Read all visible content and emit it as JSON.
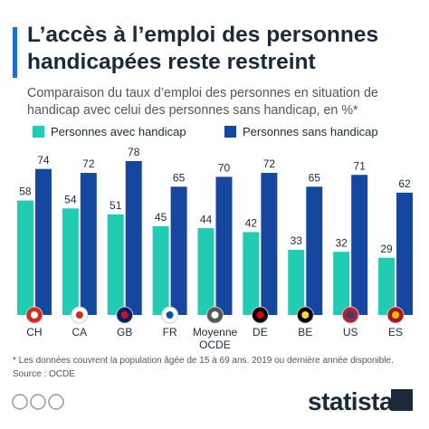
{
  "chart_data": {
    "type": "bar",
    "title": "L’accès à l’emploi des personnes handicapées reste restreint",
    "subtitle": "Comparaison du taux d’emploi des personnes en situation de handicap avec celui des personnes sans handicap, en %*",
    "categories": [
      "CH",
      "CA",
      "GB",
      "FR",
      "Moyenne OCDE",
      "DE",
      "BE",
      "US",
      "ES"
    ],
    "series": [
      {
        "name": "Personnes avec handicap",
        "color": "#22ccb2",
        "values": [
          58,
          54,
          51,
          45,
          44,
          42,
          33,
          32,
          29
        ]
      },
      {
        "name": "Personnes sans handicap",
        "color": "#1547a0",
        "values": [
          74,
          72,
          78,
          65,
          70,
          72,
          65,
          71,
          62
        ]
      }
    ],
    "ylim": [
      0,
      100
    ],
    "footnote": "* Les données couvrent la population âgée de 15 à 69 ans. 2019 ou dernière année disponible.",
    "source": "Source : OCDE",
    "brand": "statista"
  }
}
